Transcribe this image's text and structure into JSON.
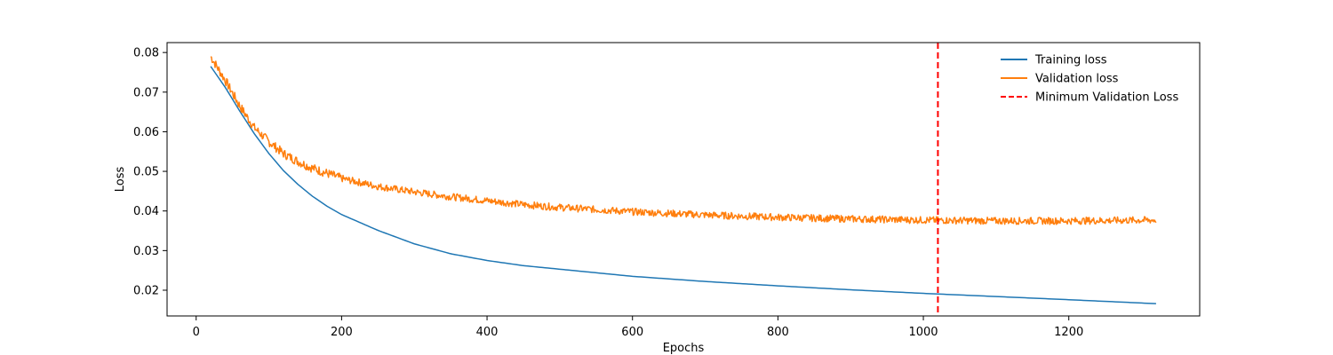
{
  "chart_data": {
    "type": "line",
    "title": "",
    "xlabel": "Epochs",
    "ylabel": "Loss",
    "xlim": [
      -40,
      1380
    ],
    "ylim": [
      0.0135,
      0.0825
    ],
    "xticks": [
      0,
      200,
      400,
      600,
      800,
      1000,
      1200
    ],
    "xtick_labels": [
      "0",
      "200",
      "400",
      "600",
      "800",
      "1000",
      "1200"
    ],
    "yticks": [
      0.02,
      0.03,
      0.04,
      0.05,
      0.06,
      0.07,
      0.08
    ],
    "ytick_labels": [
      "0.02",
      "0.03",
      "0.04",
      "0.05",
      "0.06",
      "0.07",
      "0.08"
    ],
    "grid": false,
    "legend_position": "top-right",
    "series": [
      {
        "name": "Training loss",
        "color": "#1f77b4",
        "x": [
          20,
          40,
          60,
          80,
          100,
          120,
          140,
          160,
          180,
          200,
          250,
          300,
          350,
          400,
          450,
          500,
          600,
          700,
          800,
          900,
          1000,
          1100,
          1200,
          1320
        ],
        "y": [
          0.0765,
          0.0712,
          0.0652,
          0.0595,
          0.0545,
          0.0502,
          0.0467,
          0.0437,
          0.0412,
          0.0391,
          0.0351,
          0.0317,
          0.0292,
          0.0275,
          0.0262,
          0.0253,
          0.0235,
          0.0222,
          0.0211,
          0.0201,
          0.0192,
          0.0184,
          0.0176,
          0.0166
        ]
      },
      {
        "name": "Validation loss",
        "color": "#ff7f0e",
        "x": [
          20,
          40,
          60,
          80,
          100,
          120,
          140,
          160,
          180,
          200,
          250,
          300,
          350,
          400,
          450,
          500,
          600,
          700,
          800,
          900,
          1000,
          1100,
          1200,
          1320
        ],
        "y": [
          0.079,
          0.073,
          0.0665,
          0.061,
          0.0575,
          0.0545,
          0.0525,
          0.0508,
          0.0495,
          0.0482,
          0.0462,
          0.0448,
          0.0436,
          0.0426,
          0.0416,
          0.0409,
          0.0398,
          0.039,
          0.0384,
          0.038,
          0.0377,
          0.0375,
          0.0375,
          0.0377
        ]
      }
    ],
    "vlines": [
      {
        "name": "Minimum Validation Loss",
        "x": 1020,
        "color": "#ff0000",
        "dash": "dashed"
      }
    ]
  }
}
